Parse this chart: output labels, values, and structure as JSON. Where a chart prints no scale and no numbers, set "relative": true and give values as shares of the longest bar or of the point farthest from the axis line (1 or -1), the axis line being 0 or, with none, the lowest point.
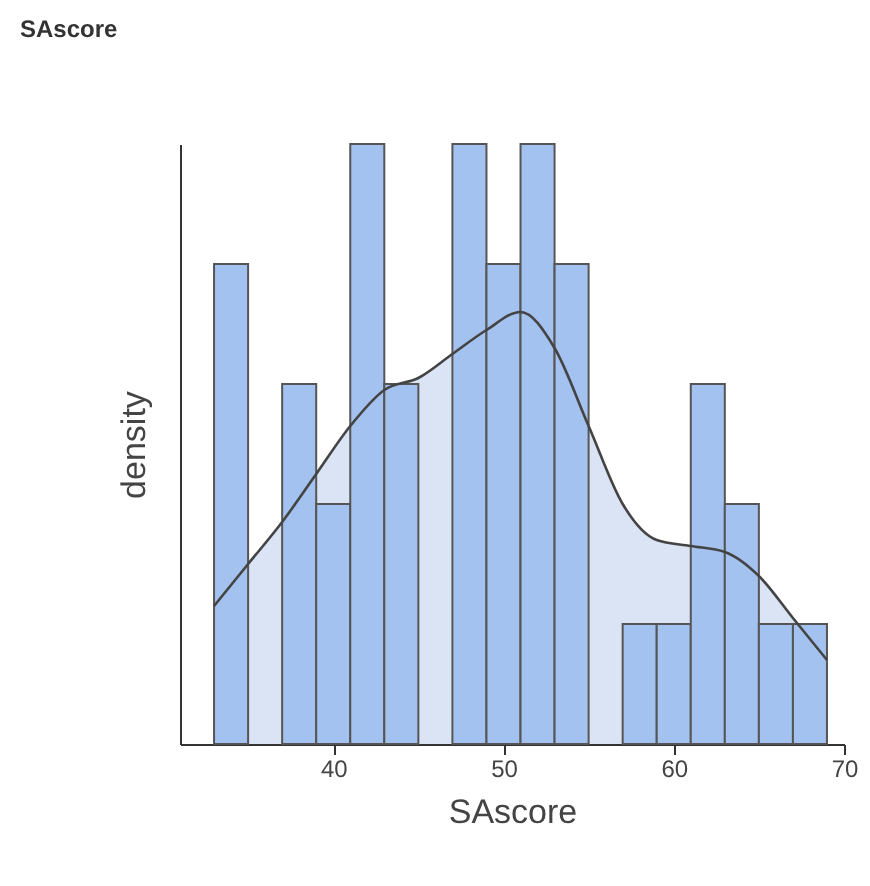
{
  "chart_data": {
    "type": "histogram",
    "title": "SAscore",
    "xlabel": "SAscore",
    "ylabel": "density",
    "relative": true,
    "bins": [
      33,
      35,
      37,
      39,
      41,
      43,
      45,
      47,
      49,
      51,
      53,
      55,
      57,
      59,
      61,
      63,
      65,
      67,
      69
    ],
    "values": [
      0.8,
      0,
      0.6,
      0.4,
      1,
      0.6,
      0,
      1,
      0.8,
      1,
      0.8,
      0,
      0.2,
      0.2,
      0.6,
      0.4,
      0.2,
      0.2
    ],
    "color": "#a4c2f0",
    "series": [
      {
        "type": "area",
        "color": "#dbe4f5",
        "x": [
          33,
          35,
          37,
          39,
          41,
          43,
          45,
          47,
          49,
          51,
          53,
          55,
          57,
          59,
          61,
          63,
          65,
          67,
          69
        ],
        "values": [
          0.23,
          0.3,
          0.37,
          0.45,
          0.53,
          0.59,
          0.61,
          0.65,
          0.69,
          0.72,
          0.66,
          0.53,
          0.4,
          0.34,
          0.33,
          0.32,
          0.28,
          0.21,
          0.14
        ]
      }
    ],
    "xlim": [
      31,
      70
    ],
    "xticks": [
      40,
      50,
      60,
      70
    ],
    "grid": false
  }
}
